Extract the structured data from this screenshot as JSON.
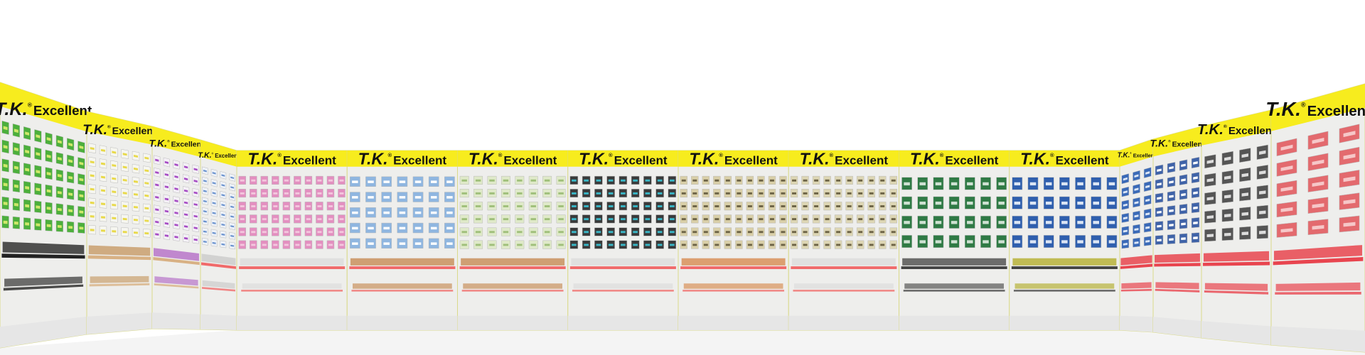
{
  "brand": {
    "mark": "T.K.",
    "registered": "®",
    "word": "Excellent"
  },
  "colors": {
    "sign": "#f7ec1e",
    "panel": "#eeeeec",
    "shelf": "#f06a6a",
    "frame": "#d9d98a",
    "floor": "#f4f4f4"
  },
  "walls": [
    {
      "id": "left-1",
      "product": "#4caf3c",
      "accent": "#cfe86a",
      "rows": 6,
      "cols": 8,
      "shelf": "#222222",
      "lower": "#333333"
    },
    {
      "id": "left-2",
      "product": "#f6f6f0",
      "accent": "#e8d94a",
      "rows": 7,
      "cols": 6,
      "shelf": "#d8b184",
      "lower": "#c99f6e"
    },
    {
      "id": "left-3",
      "product": "#f4f0f6",
      "accent": "#a64cc4",
      "rows": 7,
      "cols": 5,
      "shelf": "#d8b184",
      "lower": "#b774c9"
    },
    {
      "id": "left-4",
      "product": "#eef2f8",
      "accent": "#6b93cf",
      "rows": 8,
      "cols": 4,
      "shelf": "#f06a6a",
      "lower": "#cccccc"
    },
    {
      "id": "center-1",
      "product": "#e38fc0",
      "accent": "#f3c7de",
      "rows": 6,
      "cols": 10,
      "shelf": "#f06a6a",
      "lower": "#dddddd"
    },
    {
      "id": "center-2",
      "product": "#8fb6e0",
      "accent": "#ffffff",
      "rows": 5,
      "cols": 7,
      "shelf": "#f06a6a",
      "lower": "#c9915e"
    },
    {
      "id": "center-3",
      "product": "#dfe9c9",
      "accent": "#9fbf7a",
      "rows": 6,
      "cols": 8,
      "shelf": "#f06a6a",
      "lower": "#c9915e"
    },
    {
      "id": "center-4",
      "product": "#3a3a3a",
      "accent": "#39b8c8",
      "rows": 6,
      "cols": 9,
      "shelf": "#f06a6a",
      "lower": "#dddddd"
    },
    {
      "id": "center-5",
      "product": "#d9cfa8",
      "accent": "#6c6346",
      "rows": 6,
      "cols": 10,
      "shelf": "#f06a6a",
      "lower": "#d8915a"
    },
    {
      "id": "center-6",
      "product": "#ddd6b4",
      "accent": "#6c6346",
      "rows": 6,
      "cols": 10,
      "shelf": "#f06a6a",
      "lower": "#dddddd"
    },
    {
      "id": "center-7",
      "product": "#2f7a45",
      "accent": "#cfe2d3",
      "rows": 4,
      "cols": 7,
      "shelf": "#444444",
      "lower": "#555555"
    },
    {
      "id": "center-8",
      "product": "#2f5fae",
      "accent": "#dce6f5",
      "rows": 4,
      "cols": 7,
      "shelf": "#444444",
      "lower": "#b7b23a"
    },
    {
      "id": "right-1",
      "product": "#3a6ab8",
      "accent": "#dce6f5",
      "rows": 6,
      "cols": 3,
      "shelf": "#e8454f",
      "lower": "#e8454f"
    },
    {
      "id": "right-2",
      "product": "#3f63a8",
      "accent": "#ffffff",
      "rows": 6,
      "cols": 4,
      "shelf": "#e8454f",
      "lower": "#e8454f"
    },
    {
      "id": "right-3",
      "product": "#555555",
      "accent": "#dddddd",
      "rows": 5,
      "cols": 4,
      "shelf": "#e8454f",
      "lower": "#e8454f"
    },
    {
      "id": "right-4",
      "product": "#e36a6e",
      "accent": "#f6c7c8",
      "rows": 5,
      "cols": 3,
      "shelf": "#e8454f",
      "lower": "#e8454f"
    }
  ]
}
